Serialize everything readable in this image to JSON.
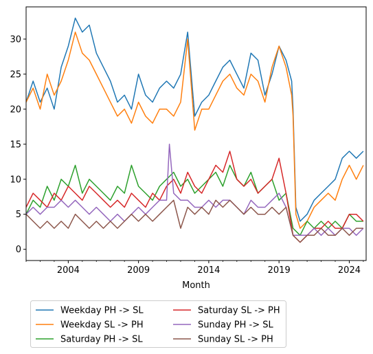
{
  "chart_data": {
    "type": "line",
    "title": "",
    "xlabel": "Month",
    "ylabel": "",
    "xlim": [
      2001.0,
      2025.2
    ],
    "ylim": [
      -1.6,
      34.6
    ],
    "xticks": [
      2004,
      2009,
      2014,
      2019,
      2024
    ],
    "yticks": [
      0,
      5,
      10,
      15,
      20,
      25,
      30
    ],
    "grid": false,
    "legend_position": "bottom, below axes, two columns",
    "series": [
      {
        "name": "Weekday PH -> SL",
        "color": "#1f77b4",
        "x": [
          2001.0,
          2001.5,
          2002.0,
          2002.5,
          2003.0,
          2003.5,
          2004.0,
          2004.5,
          2005.0,
          2005.5,
          2006.0,
          2006.5,
          2007.0,
          2007.5,
          2008.0,
          2008.5,
          2009.0,
          2009.5,
          2010.0,
          2010.5,
          2011.0,
          2011.5,
          2012.0,
          2012.5,
          2013.0,
          2013.5,
          2014.0,
          2014.5,
          2015.0,
          2015.5,
          2016.0,
          2016.5,
          2017.0,
          2017.5,
          2018.0,
          2018.5,
          2019.0,
          2019.5,
          2019.9,
          2020.0,
          2020.2,
          2020.5,
          2021.0,
          2021.5,
          2022.0,
          2022.5,
          2023.0,
          2023.5,
          2024.0,
          2024.5,
          2025.0
        ],
        "y": [
          21,
          24,
          21,
          23,
          20,
          26,
          29,
          33,
          31,
          32,
          28,
          26,
          24,
          21,
          22,
          20,
          25,
          22,
          21,
          23,
          24,
          23,
          25,
          31,
          19,
          21,
          22,
          24,
          26,
          27,
          25,
          23,
          28,
          27,
          22,
          25,
          29,
          27,
          24,
          20,
          6,
          4,
          5,
          7,
          8,
          9,
          10,
          13,
          14,
          13,
          14
        ]
      },
      {
        "name": "Weekday SL -> PH",
        "color": "#ff7f0e",
        "x": [
          2001.0,
          2001.5,
          2002.0,
          2002.5,
          2003.0,
          2003.5,
          2004.0,
          2004.5,
          2005.0,
          2005.5,
          2006.0,
          2006.5,
          2007.0,
          2007.5,
          2008.0,
          2008.5,
          2009.0,
          2009.5,
          2010.0,
          2010.5,
          2011.0,
          2011.5,
          2012.0,
          2012.5,
          2013.0,
          2013.5,
          2014.0,
          2014.5,
          2015.0,
          2015.5,
          2016.0,
          2016.5,
          2017.0,
          2017.5,
          2018.0,
          2018.5,
          2019.0,
          2019.5,
          2019.9,
          2020.0,
          2020.2,
          2020.5,
          2021.0,
          2021.5,
          2022.0,
          2022.5,
          2023.0,
          2023.5,
          2024.0,
          2024.5,
          2025.0
        ],
        "y": [
          21,
          23,
          20,
          25,
          22,
          24,
          27,
          31,
          28,
          27,
          25,
          23,
          21,
          19,
          20,
          18,
          21,
          19,
          18,
          20,
          20,
          19,
          21,
          30,
          17,
          20,
          20,
          22,
          24,
          25,
          23,
          22,
          25,
          24,
          21,
          26,
          29,
          26,
          22,
          19,
          5,
          3,
          4,
          6,
          7,
          8,
          7,
          10,
          12,
          10,
          12
        ]
      },
      {
        "name": "Saturday PH -> SL",
        "color": "#2ca02c",
        "x": [
          2001.0,
          2001.5,
          2002.0,
          2002.5,
          2003.0,
          2003.5,
          2004.0,
          2004.5,
          2005.0,
          2005.5,
          2006.0,
          2006.5,
          2007.0,
          2007.5,
          2008.0,
          2008.5,
          2009.0,
          2009.5,
          2010.0,
          2010.5,
          2011.0,
          2011.5,
          2012.0,
          2012.5,
          2013.0,
          2013.5,
          2014.0,
          2014.5,
          2015.0,
          2015.5,
          2016.0,
          2016.5,
          2017.0,
          2017.5,
          2018.0,
          2018.5,
          2019.0,
          2019.5,
          2020.0,
          2020.5,
          2021.0,
          2021.5,
          2022.0,
          2022.5,
          2023.0,
          2023.5,
          2024.0,
          2024.5,
          2025.0
        ],
        "y": [
          5,
          7,
          6,
          9,
          7,
          10,
          9,
          12,
          8,
          10,
          9,
          8,
          7,
          9,
          8,
          12,
          9,
          8,
          7,
          9,
          10,
          11,
          9,
          10,
          8,
          9,
          10,
          11,
          9,
          12,
          10,
          9,
          11,
          8,
          9,
          10,
          7,
          8,
          3,
          2,
          4,
          3,
          4,
          3,
          4,
          3,
          5,
          4,
          4
        ]
      },
      {
        "name": "Saturday SL -> PH",
        "color": "#d62728",
        "x": [
          2001.0,
          2001.5,
          2002.0,
          2002.5,
          2003.0,
          2003.5,
          2004.0,
          2004.5,
          2005.0,
          2005.5,
          2006.0,
          2006.5,
          2007.0,
          2007.5,
          2008.0,
          2008.5,
          2009.0,
          2009.5,
          2010.0,
          2010.5,
          2011.0,
          2011.5,
          2012.0,
          2012.5,
          2013.0,
          2013.5,
          2014.0,
          2014.5,
          2015.0,
          2015.5,
          2016.0,
          2016.5,
          2017.0,
          2017.5,
          2018.0,
          2018.5,
          2019.0,
          2019.5,
          2020.0,
          2020.5,
          2021.0,
          2021.5,
          2022.0,
          2022.5,
          2023.0,
          2023.5,
          2024.0,
          2024.5,
          2025.0
        ],
        "y": [
          6,
          8,
          7,
          6,
          8,
          7,
          9,
          8,
          7,
          9,
          8,
          7,
          6,
          7,
          6,
          8,
          7,
          6,
          8,
          7,
          9,
          10,
          8,
          11,
          9,
          8,
          10,
          12,
          11,
          14,
          10,
          9,
          10,
          8,
          9,
          10,
          13,
          8,
          2,
          1,
          2,
          3,
          3,
          4,
          3,
          3,
          5,
          5,
          4
        ]
      },
      {
        "name": "Sunday PH -> SL",
        "color": "#9467bd",
        "x": [
          2001.0,
          2001.5,
          2002.0,
          2002.5,
          2003.0,
          2003.5,
          2004.0,
          2004.5,
          2005.0,
          2005.5,
          2006.0,
          2006.5,
          2007.0,
          2007.5,
          2008.0,
          2008.5,
          2009.0,
          2009.5,
          2010.0,
          2010.5,
          2011.0,
          2011.2,
          2011.5,
          2012.0,
          2012.5,
          2013.0,
          2013.5,
          2014.0,
          2014.5,
          2015.0,
          2015.5,
          2016.0,
          2016.5,
          2017.0,
          2017.5,
          2018.0,
          2018.5,
          2019.0,
          2019.5,
          2020.0,
          2020.5,
          2021.0,
          2021.5,
          2022.0,
          2022.5,
          2023.0,
          2023.5,
          2024.0,
          2024.5,
          2025.0
        ],
        "y": [
          5,
          6,
          5,
          6,
          6,
          7,
          6,
          7,
          6,
          5,
          6,
          5,
          4,
          5,
          4,
          5,
          6,
          5,
          6,
          7,
          7,
          15,
          8,
          7,
          7,
          6,
          6,
          7,
          6,
          7,
          7,
          6,
          5,
          7,
          6,
          6,
          7,
          8,
          6,
          2,
          2,
          2,
          3,
          2,
          3,
          2,
          3,
          3,
          2,
          3
        ]
      },
      {
        "name": "Sunday SL -> PH",
        "color": "#8c564b",
        "x": [
          2001.0,
          2001.5,
          2002.0,
          2002.5,
          2003.0,
          2003.5,
          2004.0,
          2004.5,
          2005.0,
          2005.5,
          2006.0,
          2006.5,
          2007.0,
          2007.5,
          2008.0,
          2008.5,
          2009.0,
          2009.5,
          2010.0,
          2010.5,
          2011.0,
          2011.5,
          2012.0,
          2012.5,
          2013.0,
          2013.5,
          2014.0,
          2014.5,
          2015.0,
          2015.5,
          2016.0,
          2016.5,
          2017.0,
          2017.5,
          2018.0,
          2018.5,
          2019.0,
          2019.5,
          2020.0,
          2020.5,
          2021.0,
          2021.5,
          2022.0,
          2022.5,
          2023.0,
          2023.5,
          2024.0,
          2024.5,
          2025.0
        ],
        "y": [
          5,
          4,
          3,
          4,
          3,
          4,
          3,
          5,
          4,
          3,
          4,
          3,
          4,
          3,
          4,
          5,
          4,
          5,
          4,
          5,
          6,
          7,
          3,
          6,
          5,
          6,
          5,
          7,
          6,
          7,
          6,
          5,
          6,
          5,
          5,
          6,
          5,
          6,
          2,
          1,
          2,
          2,
          3,
          2,
          2,
          3,
          2,
          3,
          3
        ]
      }
    ]
  }
}
